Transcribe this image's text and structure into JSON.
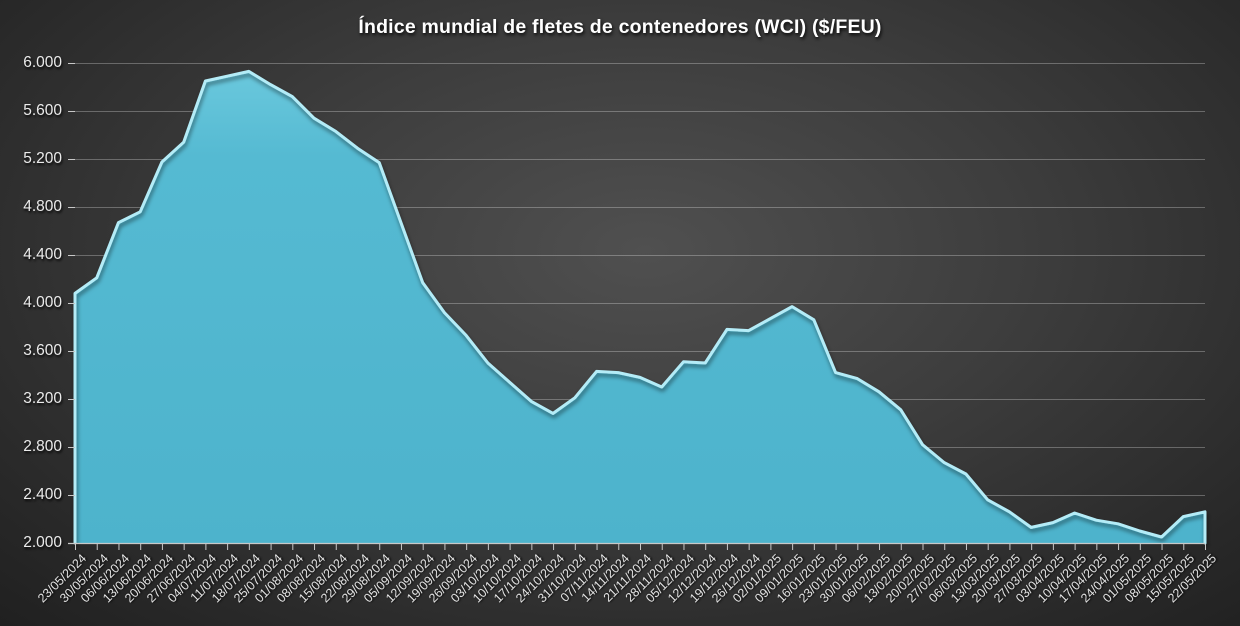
{
  "chart": {
    "colors": {
      "background_center": "#525252",
      "background_edge": "#1d1d1d",
      "area_fill": "#55bad2",
      "area_fill_light": "#6ac8dd",
      "area_fill_dark": "#4db3cc",
      "edge_highlight": "#b4ecf7",
      "gridline": "rgba(255,255,255,0.28)",
      "axis": "#c8c8c8",
      "label": "#e3e3e3",
      "title": "#ffffff"
    }
  },
  "chart_data": {
    "type": "area",
    "title": "Índice mundial de fletes de contenedores (WCI) ($/FEU)",
    "xlabel": "",
    "ylabel": "",
    "legend": "none",
    "grid": "horizontal",
    "ylim": [
      2000,
      6000
    ],
    "y_ticks": [
      2000,
      2400,
      2800,
      3200,
      3600,
      4000,
      4400,
      4800,
      5200,
      5600,
      6000
    ],
    "y_tick_labels": [
      "2.000",
      "2.400",
      "2.800",
      "3.200",
      "3.600",
      "4.000",
      "4.400",
      "4.800",
      "5.200",
      "5.600",
      "6.000"
    ],
    "x": [
      "23/05/2024",
      "30/05/2024",
      "06/06/2024",
      "13/06/2024",
      "20/06/2024",
      "27/06/2024",
      "04/07/2024",
      "11/07/2024",
      "18/07/2024",
      "25/07/2024",
      "01/08/2024",
      "08/08/2024",
      "15/08/2024",
      "22/08/2024",
      "29/08/2024",
      "05/09/2024",
      "12/09/2024",
      "19/09/2024",
      "26/09/2024",
      "03/10/2024",
      "10/10/2024",
      "17/10/2024",
      "24/10/2024",
      "31/10/2024",
      "07/11/2024",
      "14/11/2024",
      "21/11/2024",
      "28/11/2024",
      "05/12/2024",
      "12/12/2024",
      "19/12/2024",
      "26/12/2024",
      "02/01/2025",
      "09/01/2025",
      "16/01/2025",
      "23/01/2025",
      "30/01/2025",
      "06/02/2025",
      "13/02/2025",
      "20/02/2025",
      "27/02/2025",
      "06/03/2025",
      "13/03/2025",
      "20/03/2025",
      "27/03/2025",
      "03/04/2025",
      "10/04/2025",
      "17/04/2025",
      "24/04/2025",
      "01/05/2025",
      "08/05/2025",
      "15/05/2025",
      "22/05/2025"
    ],
    "values": [
      4080,
      4210,
      4670,
      4760,
      5175,
      5340,
      5850,
      5890,
      5930,
      5820,
      5720,
      5540,
      5430,
      5290,
      5170,
      4670,
      4170,
      3920,
      3730,
      3500,
      3340,
      3180,
      3080,
      3210,
      3430,
      3420,
      3380,
      3300,
      3510,
      3500,
      3780,
      3770,
      3870,
      3970,
      3860,
      3420,
      3370,
      3260,
      3110,
      2820,
      2670,
      2575,
      2360,
      2260,
      2130,
      2170,
      2250,
      2190,
      2160,
      2100,
      2050,
      2220,
      2260
    ]
  }
}
